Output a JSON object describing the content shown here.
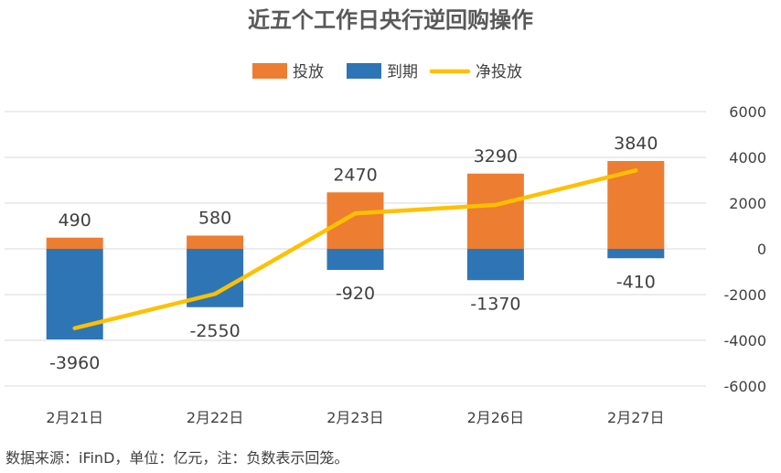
{
  "chart_data": {
    "type": "bar",
    "title": "近五个工作日央行逆回购操作",
    "categories": [
      "2月21日",
      "2月22日",
      "2月23日",
      "2月26日",
      "2月27日"
    ],
    "series": [
      {
        "name": "投放",
        "kind": "bar",
        "color": "#ED7D31",
        "values": [
          490,
          580,
          2470,
          3290,
          3840
        ]
      },
      {
        "name": "到期",
        "kind": "bar",
        "color": "#2E75B6",
        "values": [
          -3960,
          -2550,
          -920,
          -1370,
          -410
        ]
      },
      {
        "name": "净投放",
        "kind": "line",
        "color": "#FFC000",
        "values": [
          -3470,
          -1970,
          1550,
          1920,
          3430
        ]
      }
    ],
    "ylim": [
      -6000,
      6000
    ],
    "yticks": [
      6000,
      4000,
      2000,
      0,
      -2000,
      -4000,
      -6000
    ],
    "grid": true,
    "legend_position": "top",
    "xlabel": "",
    "ylabel": ""
  },
  "footnote": "数据来源：iFinD，单位：亿元，注：负数表示回笼。"
}
